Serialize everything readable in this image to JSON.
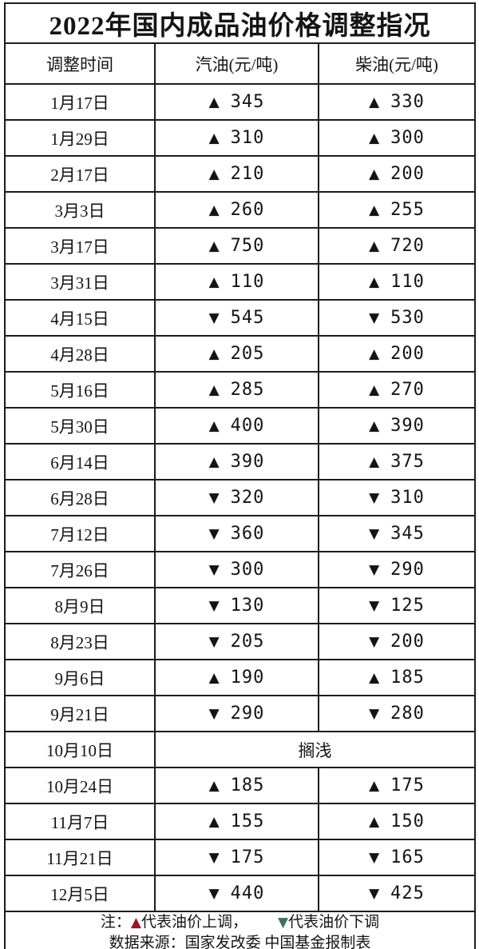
{
  "title": "2022年国内成品油价格调整指况",
  "table": {
    "columns": [
      "调整时间",
      "汽油(元/吨)",
      "柴油(元/吨)"
    ],
    "rows": [
      {
        "date": "1月17日",
        "gasoline": {
          "dir": "up",
          "value": "345",
          "tone": "bright"
        },
        "diesel": {
          "dir": "up",
          "value": "330",
          "tone": "bright"
        }
      },
      {
        "date": "1月29日",
        "gasoline": {
          "dir": "up",
          "value": "310",
          "tone": "bright"
        },
        "diesel": {
          "dir": "up",
          "value": "300",
          "tone": "bright"
        }
      },
      {
        "date": "2月17日",
        "gasoline": {
          "dir": "up",
          "value": "210",
          "tone": "muted"
        },
        "diesel": {
          "dir": "up",
          "value": "200",
          "tone": "bright"
        }
      },
      {
        "date": "3月3日",
        "gasoline": {
          "dir": "up",
          "value": "260",
          "tone": "bright"
        },
        "diesel": {
          "dir": "up",
          "value": "255",
          "tone": "bright"
        }
      },
      {
        "date": "3月17日",
        "gasoline": {
          "dir": "up",
          "value": "750",
          "tone": "bright"
        },
        "diesel": {
          "dir": "up",
          "value": "720",
          "tone": "bright"
        }
      },
      {
        "date": "3月31日",
        "gasoline": {
          "dir": "up",
          "value": "110",
          "tone": "bright"
        },
        "diesel": {
          "dir": "up",
          "value": "110",
          "tone": "bright"
        }
      },
      {
        "date": "4月15日",
        "gasoline": {
          "dir": "down",
          "value": "545",
          "tone": "bright"
        },
        "diesel": {
          "dir": "down",
          "value": "530",
          "tone": "bright"
        }
      },
      {
        "date": "4月28日",
        "gasoline": {
          "dir": "up",
          "value": "205",
          "tone": "bright"
        },
        "diesel": {
          "dir": "up",
          "value": "200",
          "tone": "bright"
        }
      },
      {
        "date": "5月16日",
        "gasoline": {
          "dir": "up",
          "value": "285",
          "tone": "muted"
        },
        "diesel": {
          "dir": "up",
          "value": "270",
          "tone": "bright"
        }
      },
      {
        "date": "5月30日",
        "gasoline": {
          "dir": "up",
          "value": "400",
          "tone": "bright"
        },
        "diesel": {
          "dir": "up",
          "value": "390",
          "tone": "bright"
        }
      },
      {
        "date": "6月14日",
        "gasoline": {
          "dir": "up",
          "value": "390",
          "tone": "bright"
        },
        "diesel": {
          "dir": "up",
          "value": "375",
          "tone": "bright"
        }
      },
      {
        "date": "6月28日",
        "gasoline": {
          "dir": "down",
          "value": "320",
          "tone": "bright"
        },
        "diesel": {
          "dir": "down",
          "value": "310",
          "tone": "bright"
        }
      },
      {
        "date": "7月12日",
        "gasoline": {
          "dir": "down",
          "value": "360",
          "tone": "muted"
        },
        "diesel": {
          "dir": "down",
          "value": "345",
          "tone": "bright"
        }
      },
      {
        "date": "7月26日",
        "gasoline": {
          "dir": "down",
          "value": "300",
          "tone": "muted"
        },
        "diesel": {
          "dir": "down",
          "value": "290",
          "tone": "bright"
        }
      },
      {
        "date": "8月9日",
        "gasoline": {
          "dir": "down",
          "value": "130",
          "tone": "muted"
        },
        "diesel": {
          "dir": "down",
          "value": "125",
          "tone": "bright"
        }
      },
      {
        "date": "8月23日",
        "gasoline": {
          "dir": "down",
          "value": "205",
          "tone": "muted"
        },
        "diesel": {
          "dir": "down",
          "value": "200",
          "tone": "bright"
        }
      },
      {
        "date": "9月6日",
        "gasoline": {
          "dir": "up",
          "value": "190",
          "tone": "bright"
        },
        "diesel": {
          "dir": "up",
          "value": "185",
          "tone": "bright"
        }
      },
      {
        "date": "9月21日",
        "gasoline": {
          "dir": "down",
          "value": "290",
          "tone": "bright"
        },
        "diesel": {
          "dir": "down",
          "value": "280",
          "tone": "bright"
        }
      },
      {
        "date": "10月10日",
        "merged": "搁浅"
      },
      {
        "date": "10月24日",
        "gasoline": {
          "dir": "up",
          "value": "185",
          "tone": "muted"
        },
        "diesel": {
          "dir": "up",
          "value": "175",
          "tone": "bright"
        }
      },
      {
        "date": "11月7日",
        "gasoline": {
          "dir": "up",
          "value": "155",
          "tone": "muted"
        },
        "diesel": {
          "dir": "up",
          "value": "150",
          "tone": "bright"
        }
      },
      {
        "date": "11月21日",
        "gasoline": {
          "dir": "down",
          "value": "175",
          "tone": "muted"
        },
        "diesel": {
          "dir": "down",
          "value": "165",
          "tone": "bright"
        }
      },
      {
        "date": "12月5日",
        "gasoline": {
          "dir": "down",
          "value": "440",
          "tone": "bright"
        },
        "diesel": {
          "dir": "down",
          "value": "425",
          "tone": "muted"
        }
      }
    ]
  },
  "note": {
    "prefix": "注：",
    "up_text": "代表油价上调，",
    "down_text": "代表油价下调",
    "source_line": "数据来源：国家发改委  中国基金报制表"
  },
  "icons": {
    "up": "▲",
    "down": "▼"
  },
  "colors": {
    "up_bright": "#98152f",
    "up_muted": "#84465a",
    "down_bright": "#089552",
    "down_muted": "#457c63",
    "legend_down": "#3a7458",
    "text": "#141414",
    "border": "#1c1c1c"
  },
  "chart_data": {
    "type": "table",
    "title": "2022年国内成品油价格调整指况",
    "columns": [
      "调整时间",
      "汽油(元/吨)",
      "柴油(元/吨)"
    ],
    "rows": [
      [
        "1月17日",
        345,
        330
      ],
      [
        "1月29日",
        310,
        300
      ],
      [
        "2月17日",
        210,
        200
      ],
      [
        "3月3日",
        260,
        255
      ],
      [
        "3月17日",
        750,
        720
      ],
      [
        "3月31日",
        110,
        110
      ],
      [
        "4月15日",
        -545,
        -530
      ],
      [
        "4月28日",
        205,
        200
      ],
      [
        "5月16日",
        285,
        270
      ],
      [
        "5月30日",
        400,
        390
      ],
      [
        "6月14日",
        390,
        375
      ],
      [
        "6月28日",
        -320,
        -310
      ],
      [
        "7月12日",
        -360,
        -345
      ],
      [
        "7月26日",
        -300,
        -290
      ],
      [
        "8月9日",
        -130,
        -125
      ],
      [
        "8月23日",
        -205,
        -200
      ],
      [
        "9月6日",
        190,
        185
      ],
      [
        "9月21日",
        -290,
        -280
      ],
      [
        "10月10日",
        "搁浅",
        "搁浅"
      ],
      [
        "10月24日",
        185,
        175
      ],
      [
        "11月7日",
        155,
        150
      ],
      [
        "11月21日",
        -175,
        -165
      ],
      [
        "12月5日",
        -440,
        -425
      ]
    ],
    "legend": {
      "up_triangle": "代表油价上调",
      "down_triangle": "代表油价下调"
    },
    "source": "数据来源：国家发改委  中国基金报制表"
  }
}
